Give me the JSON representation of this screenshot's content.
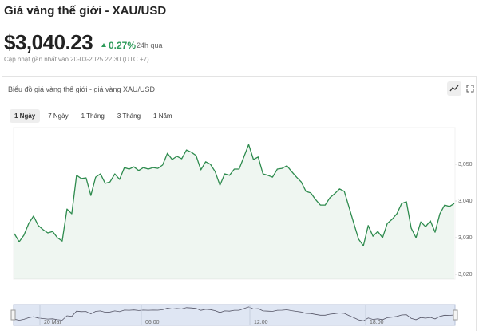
{
  "header": {
    "title": "Giá vàng thế giới - XAU/USD",
    "price": "$3,040.23",
    "change": "0.27%",
    "period": "24h qua",
    "updated": "Cập nhật gần nhất vào 20-03-2025 22:30 (UTC +7)"
  },
  "card": {
    "title": "Biểu đồ giá vàng thế giới - giá vàng XAU/USD",
    "tabs": [
      "1 Ngày",
      "7 Ngày",
      "1 Tháng",
      "3 Tháng",
      "1 Năm"
    ],
    "selected_tab": 0
  },
  "chart_data": {
    "type": "line",
    "color": "#2e8b4e",
    "values": [
      3031.1,
      3028.9,
      3030.7,
      3033.9,
      3035.9,
      3033.3,
      3032.2,
      3031.3,
      3031.7,
      3030.0,
      3029.1,
      3037.8,
      3036.5,
      3047.0,
      3046.1,
      3046.3,
      3041.5,
      3046.5,
      3047.4,
      3044.8,
      3045.2,
      3047.4,
      3045.9,
      3049.1,
      3048.7,
      3049.3,
      3048.3,
      3049.1,
      3048.7,
      3049.1,
      3048.9,
      3049.8,
      3053.0,
      3051.3,
      3052.2,
      3051.5,
      3053.9,
      3053.3,
      3052.4,
      3048.5,
      3050.7,
      3050.0,
      3048.0,
      3044.3,
      3047.4,
      3047.0,
      3048.7,
      3048.7,
      3052.0,
      3055.4,
      3051.3,
      3052.0,
      3047.4,
      3047.0,
      3046.5,
      3048.7,
      3048.9,
      3049.6,
      3048.0,
      3046.5,
      3045.2,
      3042.6,
      3042.2,
      3040.4,
      3038.9,
      3038.9,
      3040.9,
      3042.0,
      3043.3,
      3042.6,
      3038.3,
      3033.9,
      3029.6,
      3027.8,
      3033.3,
      3030.4,
      3031.7,
      3030.0,
      3033.9,
      3035.0,
      3036.5,
      3039.3,
      3039.8,
      3032.6,
      3030.0,
      3034.3,
      3033.0,
      3034.6,
      3031.5,
      3036.5,
      3038.9,
      3038.5,
      3039.3
    ],
    "ylim": [
      3018.7,
      3060
    ],
    "yticks": [
      {
        "value": 3020,
        "label": "3,020"
      },
      {
        "value": 3030,
        "label": "3,030"
      },
      {
        "value": 3040,
        "label": "3,040"
      },
      {
        "value": 3050,
        "label": "3,050"
      }
    ],
    "navigator_labels": [
      "20 Mar",
      "06:00",
      "12:00",
      "18:00"
    ]
  }
}
